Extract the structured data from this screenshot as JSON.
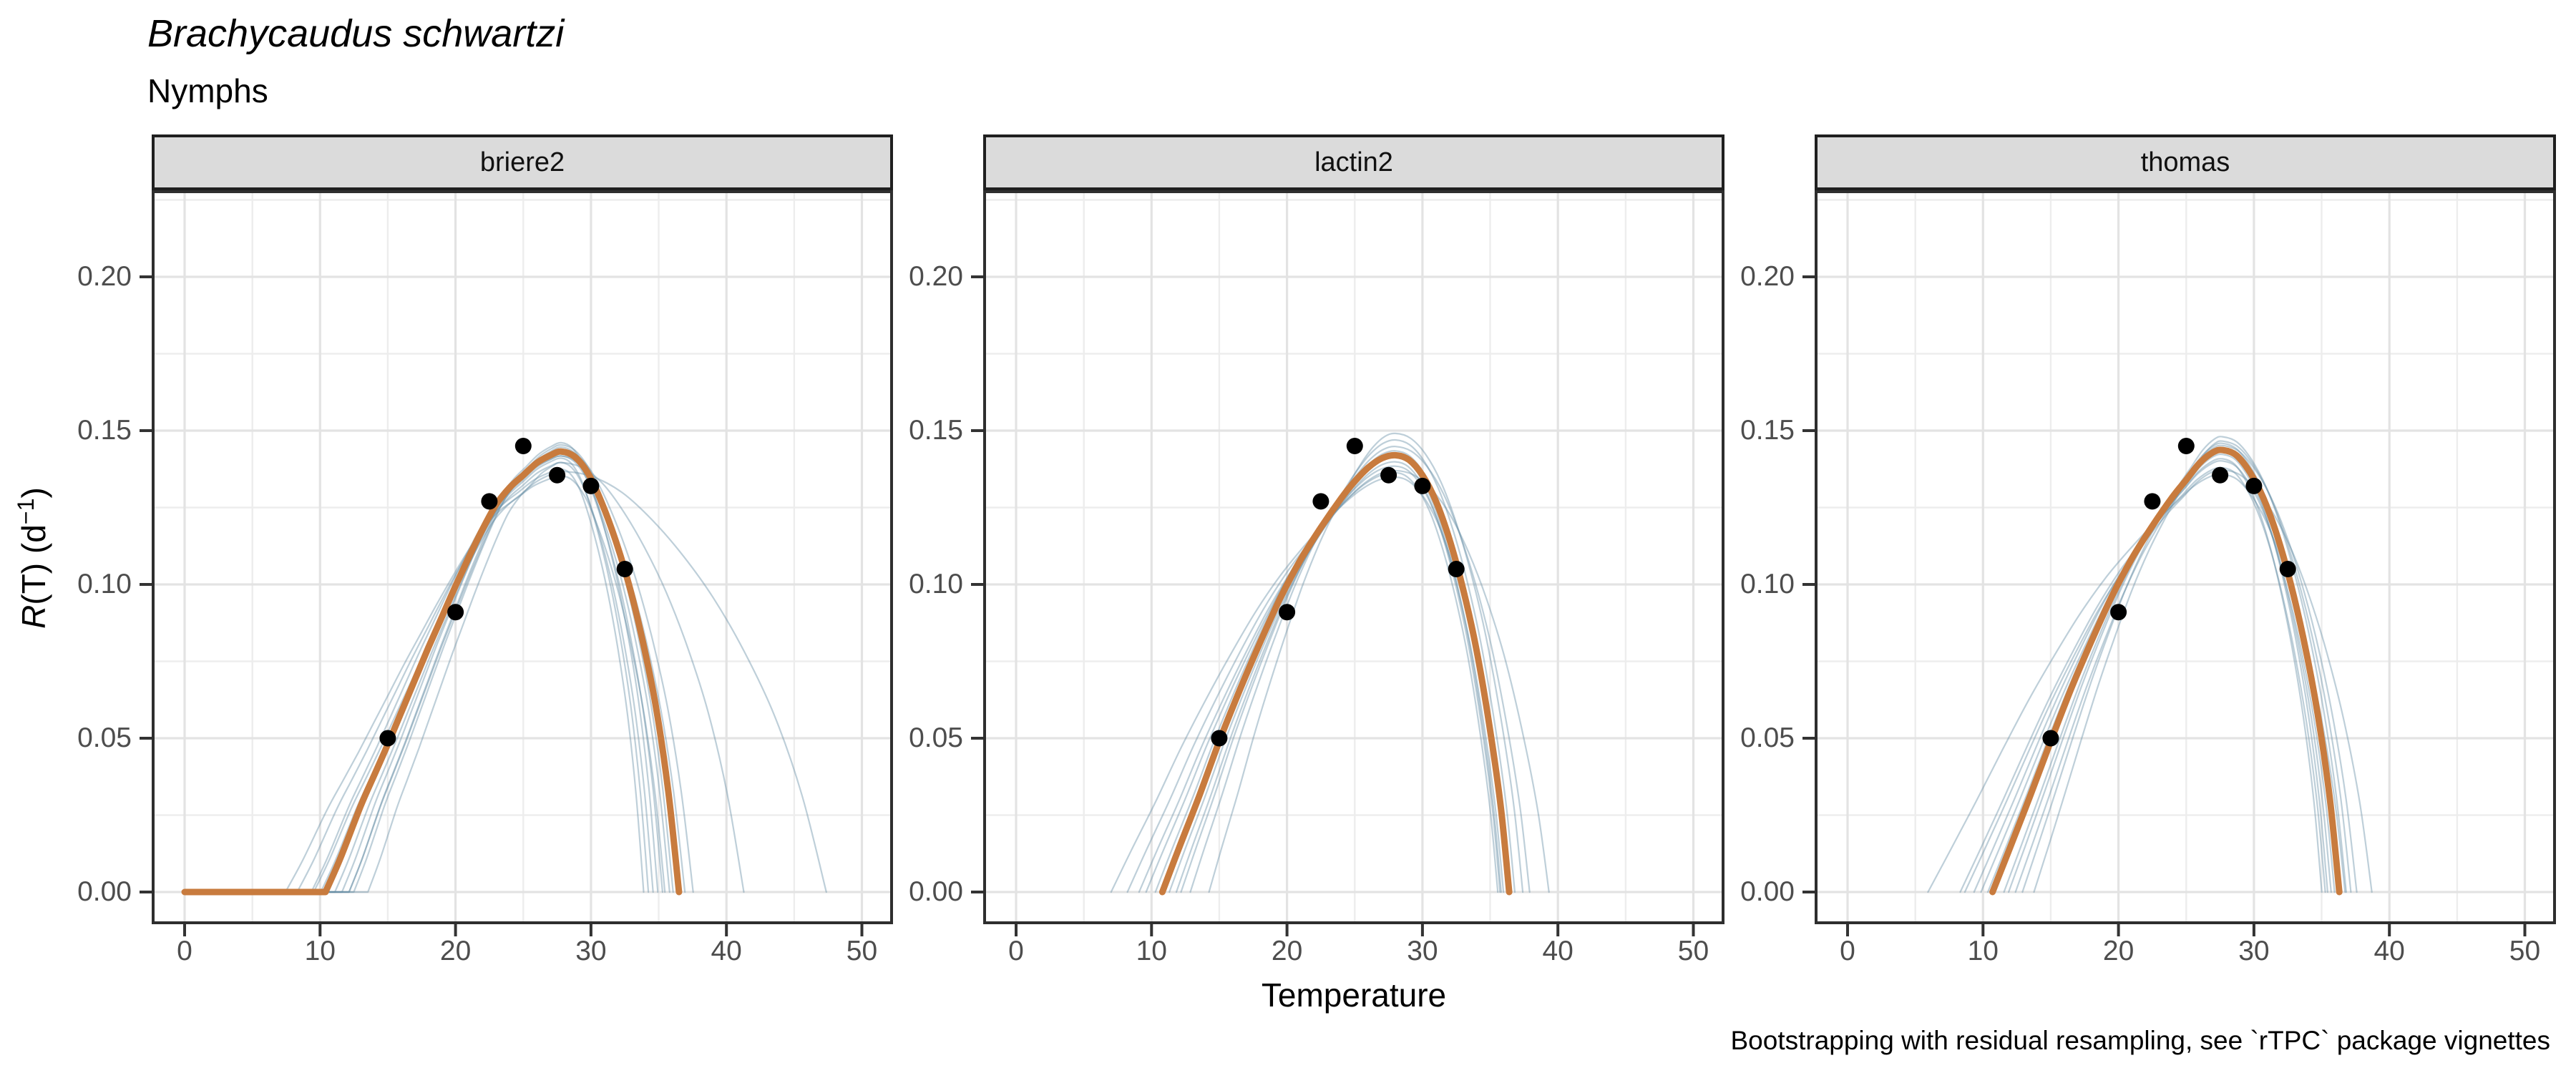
{
  "header": {
    "title": "Brachycaudus schwartzi",
    "subtitle": "Nymphs"
  },
  "caption": "Bootstrapping with residual resampling, see `rTPC` package vignettes",
  "y_axis_title": {
    "italic_part": "R",
    "mid_part": "(T) (d",
    "sup_part": "−1",
    "end_part": ")"
  },
  "style": {
    "fit_color": "#C87B3E",
    "bootstrap_color": "#648CA5",
    "bootstrap_opacity": 0.42,
    "point_color": "#000000",
    "grid_major_color": "#E3E3E3",
    "grid_minor_color": "#EDEDED",
    "panel_border_color": "#2E2E2E",
    "strip_bg_color": "#DBDBDB",
    "tick_color": "#333333",
    "tick_label_color": "#4D4D4D"
  },
  "chart_data": {
    "type": "line",
    "title": "Brachycaudus schwartzi",
    "subtitle": "Nymphs",
    "xlabel": "Temperature",
    "ylabel": "R(T) (d−1)",
    "legend_position": "none",
    "grid": true,
    "xlim": [
      -2.43,
      52.3
    ],
    "ylim": [
      -0.0105,
      0.2281
    ],
    "axes": {
      "x_label": "Temperature",
      "x_ticks": [
        {
          "value": 0,
          "label": "0"
        },
        {
          "value": 10,
          "label": "10"
        },
        {
          "value": 20,
          "label": "20"
        },
        {
          "value": 30,
          "label": "30"
        },
        {
          "value": 40,
          "label": "40"
        },
        {
          "value": 50,
          "label": "50"
        }
      ],
      "x_minor": [
        5,
        15,
        25,
        35,
        45
      ],
      "y_ticks": [
        {
          "value": 0.0,
          "label": "0.00"
        },
        {
          "value": 0.05,
          "label": "0.05"
        },
        {
          "value": 0.1,
          "label": "0.10"
        },
        {
          "value": 0.15,
          "label": "0.15"
        },
        {
          "value": 0.2,
          "label": "0.20"
        }
      ],
      "y_minor": [
        0.025,
        0.075,
        0.125,
        0.175,
        0.225
      ]
    },
    "points": [
      [
        15,
        0.05
      ],
      [
        20,
        0.091
      ],
      [
        22.5,
        0.127
      ],
      [
        25,
        0.145
      ],
      [
        27.5,
        0.1355
      ],
      [
        30,
        0.132
      ],
      [
        32.5,
        0.105
      ]
    ],
    "facets": [
      {
        "label": "briere2",
        "flat_zero": true,
        "fit": {
          "peak_t": 27.8,
          "points": [
            [
              0,
              0
            ],
            [
              10.4,
              0
            ],
            [
              11.5,
              0.011
            ],
            [
              13,
              0.028
            ],
            [
              14,
              0.038
            ],
            [
              15,
              0.048
            ],
            [
              16,
              0.0585
            ],
            [
              17,
              0.069
            ],
            [
              18,
              0.0795
            ],
            [
              19,
              0.0895
            ],
            [
              20,
              0.0995
            ],
            [
              21,
              0.109
            ],
            [
              22,
              0.118
            ],
            [
              23,
              0.126
            ],
            [
              24,
              0.1315
            ],
            [
              25,
              0.1355
            ],
            [
              26,
              0.1395
            ],
            [
              27,
              0.142
            ],
            [
              27.8,
              0.1432
            ],
            [
              28.8,
              0.1415
            ],
            [
              29.8,
              0.136
            ],
            [
              30.8,
              0.1265
            ],
            [
              31.8,
              0.1145
            ],
            [
              32.8,
              0.1
            ],
            [
              33.8,
              0.082
            ],
            [
              34.8,
              0.06
            ],
            [
              35.7,
              0.033
            ],
            [
              36.5,
              0
            ]
          ]
        },
        "bootstraps": [
          {
            "sl": 1.02,
            "sr": 0.78,
            "sy": 0.975
          },
          {
            "sl": 0.96,
            "sr": 0.86,
            "sy": 1.0
          },
          {
            "sl": 1.06,
            "sr": 0.92,
            "sy": 0.99
          },
          {
            "sl": 0.9,
            "sr": 1.0,
            "sy": 1.015
          },
          {
            "sl": 1.12,
            "sr": 0.7,
            "sy": 0.96
          },
          {
            "sl": 0.9,
            "sr": 1.12,
            "sy": 1.005
          },
          {
            "sl": 1.0,
            "sr": 0.74,
            "sy": 0.985
          },
          {
            "sl": 0.93,
            "sr": 0.82,
            "sy": 1.02
          },
          {
            "sl": 1.17,
            "sr": 0.88,
            "sy": 0.945
          },
          {
            "sl": 0.82,
            "sr": 1.55,
            "sy": 0.975
          },
          {
            "sl": 1.05,
            "sr": 2.25,
            "sy": 0.955
          },
          {
            "sl": 0.88,
            "sr": 0.95,
            "sy": 1.01
          },
          {
            "sl": 1.0,
            "sr": 1.05,
            "sy": 0.99
          }
        ]
      },
      {
        "label": "lactin2",
        "flat_zero": false,
        "fit": {
          "peak_t": 28.0,
          "points": [
            [
              10.8,
              0
            ],
            [
              12,
              0.014
            ],
            [
              13.5,
              0.031
            ],
            [
              15,
              0.049
            ],
            [
              16.5,
              0.0655
            ],
            [
              18,
              0.081
            ],
            [
              19.5,
              0.0955
            ],
            [
              21,
              0.108
            ],
            [
              22.5,
              0.1185
            ],
            [
              24,
              0.128
            ],
            [
              25,
              0.1335
            ],
            [
              26,
              0.138
            ],
            [
              27,
              0.141
            ],
            [
              28,
              0.142
            ],
            [
              29,
              0.1405
            ],
            [
              30,
              0.1355
            ],
            [
              31,
              0.127
            ],
            [
              32,
              0.1145
            ],
            [
              33,
              0.0985
            ],
            [
              34,
              0.0785
            ],
            [
              35,
              0.0525
            ],
            [
              35.8,
              0.027
            ],
            [
              36.4,
              0
            ]
          ]
        },
        "bootstraps": [
          {
            "sl": 1.0,
            "sr": 0.92,
            "sy": 0.985
          },
          {
            "sl": 0.94,
            "sr": 1.0,
            "sy": 1.01
          },
          {
            "sl": 1.07,
            "sr": 0.95,
            "sy": 0.975
          },
          {
            "sl": 0.88,
            "sr": 1.05,
            "sy": 1.035
          },
          {
            "sl": 1.15,
            "sr": 0.9,
            "sy": 0.96
          },
          {
            "sl": 0.8,
            "sr": 1.12,
            "sy": 1.05
          },
          {
            "sl": 1.03,
            "sr": 0.98,
            "sy": 1.0
          },
          {
            "sl": 0.92,
            "sr": 1.18,
            "sy": 1.02
          },
          {
            "sl": 1.1,
            "sr": 1.35,
            "sy": 0.965
          },
          {
            "sl": 0.97,
            "sr": 0.93,
            "sy": 0.995
          },
          {
            "sl": 1.22,
            "sr": 1.02,
            "sy": 0.95
          }
        ]
      },
      {
        "label": "thomas",
        "flat_zero": false,
        "fit": {
          "peak_t": 27.7,
          "points": [
            [
              10.7,
              0
            ],
            [
              12,
              0.0145
            ],
            [
              13.5,
              0.0315
            ],
            [
              15,
              0.049
            ],
            [
              16.5,
              0.066
            ],
            [
              18,
              0.0815
            ],
            [
              19.5,
              0.096
            ],
            [
              21,
              0.1085
            ],
            [
              22.5,
              0.119
            ],
            [
              24,
              0.1285
            ],
            [
              25,
              0.134
            ],
            [
              26,
              0.1395
            ],
            [
              27,
              0.143
            ],
            [
              27.7,
              0.1437
            ],
            [
              28.7,
              0.142
            ],
            [
              29.7,
              0.1365
            ],
            [
              30.7,
              0.128
            ],
            [
              31.7,
              0.116
            ],
            [
              32.7,
              0.1005
            ],
            [
              33.7,
              0.0815
            ],
            [
              34.7,
              0.058
            ],
            [
              35.6,
              0.0305
            ],
            [
              36.3,
              0
            ]
          ]
        },
        "bootstraps": [
          {
            "sl": 1.0,
            "sr": 0.93,
            "sy": 0.99
          },
          {
            "sl": 0.93,
            "sr": 1.0,
            "sy": 1.015
          },
          {
            "sl": 1.08,
            "sr": 0.96,
            "sy": 0.975
          },
          {
            "sl": 0.87,
            "sr": 1.06,
            "sy": 1.03
          },
          {
            "sl": 1.14,
            "sr": 0.88,
            "sy": 0.96
          },
          {
            "sl": 0.82,
            "sr": 1.1,
            "sy": 1.02
          },
          {
            "sl": 1.02,
            "sr": 1.0,
            "sy": 1.0
          },
          {
            "sl": 0.95,
            "sr": 1.15,
            "sy": 1.01
          },
          {
            "sl": 1.12,
            "sr": 1.28,
            "sy": 0.955
          },
          {
            "sl": 0.9,
            "sr": 0.9,
            "sy": 1.005
          },
          {
            "sl": 1.05,
            "sr": 0.85,
            "sy": 0.98
          },
          {
            "sl": 1.28,
            "sr": 1.05,
            "sy": 0.945
          }
        ]
      }
    ]
  }
}
